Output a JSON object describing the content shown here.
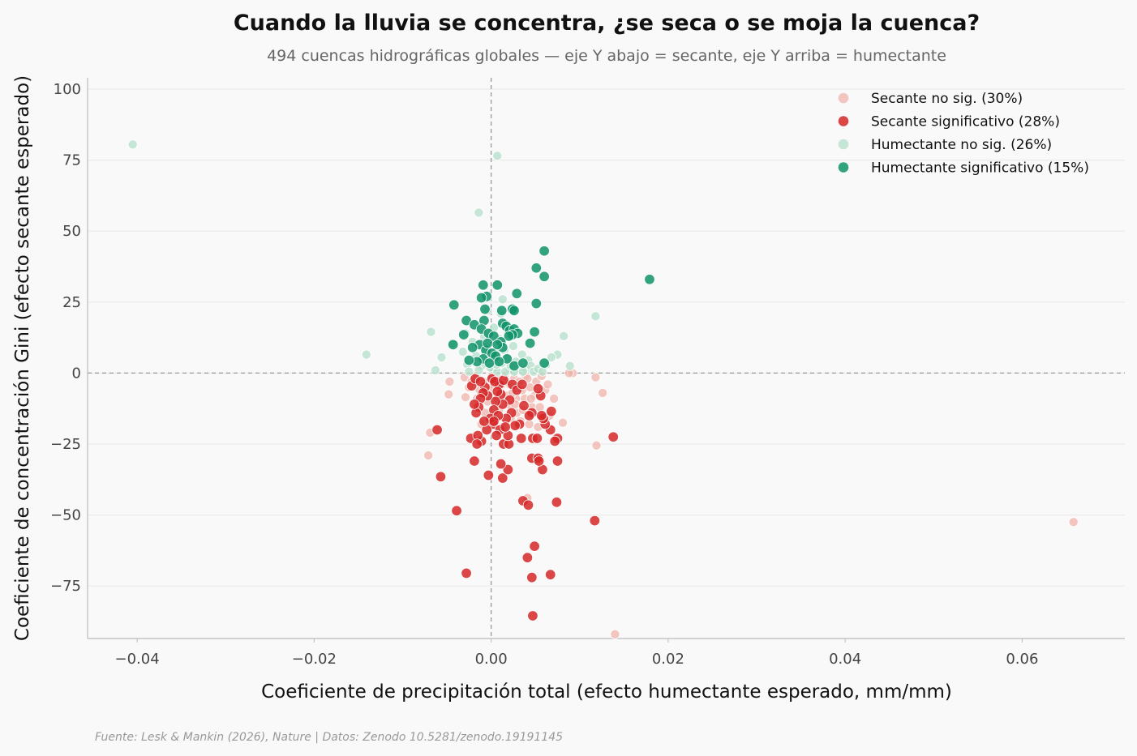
{
  "colors": {
    "secante_no_sig": "#efb3ab",
    "secante_sig": "#d62728",
    "humectante_no_sig": "#b3dfc9",
    "humectante_sig": "#0f936a",
    "zero_line": "#999999",
    "grid": "#e8e8e8",
    "axis": "#bbbbbb"
  },
  "chart_data": {
    "type": "scatter",
    "title": "Cuando la lluvia se concentra, ¿se seca o se moja la cuenca?",
    "subtitle": "494 cuencas hidrográficas globales — eje Y abajo = secante, eje Y arriba = humectante",
    "xlabel": "Coeficiente de precipitación total (efecto humectante esperado, mm/mm)",
    "ylabel": "Coeficiente de concentración Gini (efecto secante esperado)",
    "xlim": [
      -0.0456,
      0.0716
    ],
    "ylim": [
      -93.5,
      104
    ],
    "x_ticks": [
      -0.04,
      -0.02,
      0.0,
      0.02,
      0.04,
      0.06
    ],
    "x_tick_labels": [
      "−0.04",
      "−0.02",
      "0.00",
      "0.02",
      "0.04",
      "0.06"
    ],
    "y_ticks": [
      100,
      75,
      50,
      25,
      0,
      -25,
      -50,
      -75
    ],
    "y_tick_labels": [
      "100",
      "75",
      "50",
      "25",
      "0",
      "−25",
      "−50",
      "−75"
    ],
    "grid": "horizontal",
    "reference_lines": {
      "x": 0,
      "y": 0,
      "style": "dashed"
    },
    "legend_position": "top-right",
    "series": [
      {
        "name": "Secante no sig. (30%)",
        "color_key": "secante_no_sig",
        "points": [
          [
            0.014,
            -92
          ],
          [
            0.0658,
            -52.5
          ],
          [
            0.0119,
            -25.5
          ],
          [
            0.0126,
            -7
          ],
          [
            0.0118,
            -1.5
          ],
          [
            0.0092,
            0
          ],
          [
            0.0088,
            0
          ],
          [
            0.0081,
            -17.5
          ],
          [
            0.0041,
            -44
          ],
          [
            0.0043,
            -18
          ],
          [
            0.0046,
            -12
          ],
          [
            0.0028,
            -9
          ],
          [
            0.0022,
            -16
          ],
          [
            -0.0069,
            -21
          ],
          [
            -0.0071,
            -29
          ],
          [
            -0.0047,
            -3
          ],
          [
            -0.0048,
            -7.5
          ],
          [
            -0.0029,
            -8.5
          ],
          [
            -0.003,
            -1.5
          ],
          [
            -0.0025,
            -5
          ],
          [
            -0.0019,
            -1
          ],
          [
            -0.0013,
            -6
          ],
          [
            -0.0009,
            -3
          ],
          [
            -0.0007,
            -14
          ],
          [
            -0.0004,
            -10
          ],
          [
            0.0001,
            -5
          ],
          [
            0.0004,
            -2
          ],
          [
            0.0007,
            -9
          ],
          [
            0.0009,
            -13
          ],
          [
            0.0012,
            -4
          ],
          [
            0.0015,
            -1
          ],
          [
            0.0018,
            -8
          ],
          [
            0.002,
            -11
          ],
          [
            0.0024,
            -7
          ],
          [
            0.0026,
            -2
          ],
          [
            0.0029,
            -14
          ],
          [
            0.0032,
            -3
          ],
          [
            0.0035,
            -6
          ],
          [
            0.0038,
            -9
          ],
          [
            0.0039,
            -1
          ],
          [
            0.0044,
            -5
          ],
          [
            0.0049,
            -8
          ],
          [
            0.0051,
            -3
          ],
          [
            0.0055,
            -12
          ],
          [
            0.0061,
            -6
          ],
          [
            0.0064,
            -4
          ],
          [
            0.0071,
            -9
          ],
          [
            -0.0016,
            -9
          ],
          [
            -0.0022,
            -3
          ],
          [
            -0.0006,
            -7
          ],
          [
            0.0006,
            -16
          ],
          [
            0.0013,
            -19
          ],
          [
            0.0021,
            -4
          ],
          [
            0.0027,
            -11
          ],
          [
            0.0033,
            -17
          ],
          [
            0.0041,
            -2
          ],
          [
            0.0057,
            -1
          ],
          [
            0.0066,
            -15
          ],
          [
            -0.0011,
            -18
          ],
          [
            0.0001,
            -1
          ],
          [
            0.0009,
            -2
          ],
          [
            0.0017,
            -3
          ],
          [
            0.0036,
            -13
          ],
          [
            0.0045,
            -9
          ],
          [
            0.0053,
            -19
          ]
        ]
      },
      {
        "name": "Secante significativo (28%)",
        "color_key": "secante_sig",
        "points": [
          [
            0.0047,
            -85.5
          ],
          [
            -0.0028,
            -70.5
          ],
          [
            0.0046,
            -72
          ],
          [
            0.0067,
            -71
          ],
          [
            0.0041,
            -65
          ],
          [
            0.0049,
            -61
          ],
          [
            -0.0039,
            -48.5
          ],
          [
            0.0117,
            -52
          ],
          [
            0.0074,
            -45.5
          ],
          [
            0.0036,
            -45
          ],
          [
            0.0042,
            -46.5
          ],
          [
            -0.0057,
            -36.5
          ],
          [
            -0.0003,
            -36
          ],
          [
            0.0013,
            -37
          ],
          [
            0.0019,
            -34
          ],
          [
            0.0058,
            -34
          ],
          [
            0.0046,
            -30
          ],
          [
            0.0053,
            -30
          ],
          [
            0.0054,
            -31
          ],
          [
            0.0075,
            -31
          ],
          [
            0.0011,
            -32
          ],
          [
            -0.0019,
            -31
          ],
          [
            -0.0061,
            -20
          ],
          [
            0.0138,
            -22.5
          ],
          [
            0.0075,
            -23
          ],
          [
            0.0072,
            -24
          ],
          [
            0.0047,
            -23
          ],
          [
            0.0052,
            -23
          ],
          [
            0.0034,
            -23
          ],
          [
            -0.0023,
            -23
          ],
          [
            -0.0011,
            -24
          ],
          [
            -0.0015,
            -22
          ],
          [
            -0.0016,
            -25
          ],
          [
            0.0014,
            -25
          ],
          [
            0.002,
            -25
          ],
          [
            0.0019,
            -22
          ],
          [
            0.0067,
            -20
          ],
          [
            0.0061,
            -18
          ],
          [
            0.0059,
            -16
          ],
          [
            0.0068,
            -13.5
          ],
          [
            0.0057,
            -15
          ],
          [
            0.0056,
            -8
          ],
          [
            0.0053,
            -5.5
          ],
          [
            0.0046,
            -14
          ],
          [
            0.0043,
            -15
          ],
          [
            0.0037,
            -11.5
          ],
          [
            0.0032,
            -18
          ],
          [
            0.0027,
            -18.5
          ],
          [
            0.0023,
            -14
          ],
          [
            0.0021,
            -9.5
          ],
          [
            0.0017,
            -16
          ],
          [
            0.0013,
            -11
          ],
          [
            0.0011,
            -7.5
          ],
          [
            0.0009,
            -4
          ],
          [
            0.0007,
            -6.5
          ],
          [
            0.0005,
            -10
          ],
          [
            0.0003,
            -13
          ],
          [
            0.0002,
            -18
          ],
          [
            -0.0001,
            -16
          ],
          [
            -0.0004,
            -8
          ],
          [
            -0.0007,
            -5
          ],
          [
            -0.0009,
            -7
          ],
          [
            -0.0012,
            -9
          ],
          [
            -0.0014,
            -12
          ],
          [
            -0.0017,
            -14
          ],
          [
            -0.0019,
            -11
          ],
          [
            -0.0022,
            -4.5
          ],
          [
            -0.0018,
            -2
          ],
          [
            -0.0012,
            -3
          ],
          [
            0.0001,
            -2
          ],
          [
            0.0004,
            -3
          ],
          [
            0.0014,
            -2.5
          ],
          [
            0.0024,
            -4
          ],
          [
            0.0029,
            -6
          ],
          [
            0.0035,
            -4
          ],
          [
            0.001,
            -20
          ],
          [
            0.0016,
            -19
          ],
          [
            0.0008,
            -15
          ],
          [
            0.0006,
            -22
          ],
          [
            0.0003,
            -17
          ],
          [
            -0.0005,
            -20
          ],
          [
            -0.0008,
            -17
          ]
        ]
      },
      {
        "name": "Humectante no sig. (26%)",
        "color_key": "humectante_no_sig",
        "points": [
          [
            -0.0405,
            80.5
          ],
          [
            0.0007,
            76.5
          ],
          [
            -0.0014,
            56.5
          ],
          [
            -0.0141,
            6.5
          ],
          [
            0.0118,
            20
          ],
          [
            0.0082,
            13
          ],
          [
            0.0089,
            2.5
          ],
          [
            0.0075,
            6.5
          ],
          [
            0.0068,
            5.5
          ],
          [
            0.0062,
            3
          ],
          [
            -0.0068,
            14.5
          ],
          [
            -0.0056,
            5.5
          ],
          [
            -0.0063,
            1
          ],
          [
            -0.0044,
            10.5
          ],
          [
            -0.0032,
            7.5
          ],
          [
            -0.0027,
            3
          ],
          [
            -0.0021,
            11
          ],
          [
            -0.0017,
            6
          ],
          [
            -0.0011,
            2.5
          ],
          [
            -0.0006,
            9
          ],
          [
            -0.0003,
            4
          ],
          [
            0.0002,
            1.5
          ],
          [
            0.0005,
            7
          ],
          [
            0.0009,
            12
          ],
          [
            0.0012,
            3.5
          ],
          [
            0.0013,
            26
          ],
          [
            0.0015,
            8
          ],
          [
            0.0018,
            5.5
          ],
          [
            0.0021,
            1
          ],
          [
            0.0025,
            9.5
          ],
          [
            0.0028,
            4
          ],
          [
            0.0031,
            2
          ],
          [
            0.0035,
            6.5
          ],
          [
            0.0039,
            1.5
          ],
          [
            0.0042,
            4.5
          ],
          [
            0.0045,
            2.5
          ],
          [
            0.0048,
            0.5
          ],
          [
            0.0053,
            1.5
          ],
          [
            0.0058,
            0.5
          ],
          [
            -0.0025,
            0.5
          ],
          [
            -0.0014,
            1
          ],
          [
            -0.0001,
            2
          ],
          [
            0.0007,
            0.5
          ],
          [
            0.0016,
            0.5
          ],
          [
            0.0026,
            0.5
          ],
          [
            0.0036,
            0.5
          ],
          [
            0.0006,
            3
          ],
          [
            -0.0008,
            13
          ],
          [
            0.0019,
            14
          ],
          [
            0.0003,
            16
          ],
          [
            -0.0029,
            14
          ],
          [
            0.0022,
            2.5
          ],
          [
            0.0011,
            21
          ],
          [
            -0.0004,
            22
          ]
        ]
      },
      {
        "name": "Humectante significativo (15%)",
        "color_key": "humectante_sig",
        "points": [
          [
            0.0179,
            33
          ],
          [
            0.006,
            43
          ],
          [
            0.006,
            34
          ],
          [
            0.0051,
            37
          ],
          [
            0.0051,
            24.5
          ],
          [
            0.0029,
            28
          ],
          [
            0.0007,
            31
          ],
          [
            -0.0009,
            31
          ],
          [
            -0.0005,
            27
          ],
          [
            -0.0011,
            26.5
          ],
          [
            -0.0042,
            24
          ],
          [
            0.0024,
            22.5
          ],
          [
            0.0026,
            22
          ],
          [
            0.0012,
            22
          ],
          [
            -0.0007,
            22.5
          ],
          [
            -0.0028,
            18.5
          ],
          [
            -0.0008,
            18.5
          ],
          [
            -0.0019,
            17
          ],
          [
            0.0013,
            17.5
          ],
          [
            0.0017,
            16.5
          ],
          [
            0.0021,
            15
          ],
          [
            0.0026,
            15.5
          ],
          [
            0.003,
            14
          ],
          [
            0.0024,
            13.5
          ],
          [
            0.002,
            13
          ],
          [
            -0.0011,
            15.5
          ],
          [
            -0.0003,
            14
          ],
          [
            0.0003,
            13
          ],
          [
            -0.0031,
            13.5
          ],
          [
            0.0049,
            14.5
          ],
          [
            0.0044,
            10.5
          ],
          [
            0.0011,
            11
          ],
          [
            -0.0013,
            10
          ],
          [
            -0.0043,
            10
          ],
          [
            -0.0021,
            9
          ],
          [
            -0.0006,
            8
          ],
          [
            0.0001,
            7
          ],
          [
            0.0013,
            9
          ],
          [
            0.0005,
            6
          ],
          [
            -0.0009,
            5
          ],
          [
            -0.0016,
            4
          ],
          [
            -0.0025,
            4.5
          ],
          [
            0.0018,
            5
          ],
          [
            0.0026,
            2.5
          ],
          [
            0.0036,
            3.5
          ],
          [
            0.006,
            3.5
          ],
          [
            -0.0002,
            3.5
          ],
          [
            0.0009,
            4
          ],
          [
            -0.0004,
            10.5
          ],
          [
            0.0007,
            10
          ]
        ]
      }
    ]
  },
  "footer": {
    "source": "Fuente: Lesk & Mankin (2026), Nature | Datos: Zenodo 10.5281/zenodo.19191145"
  }
}
